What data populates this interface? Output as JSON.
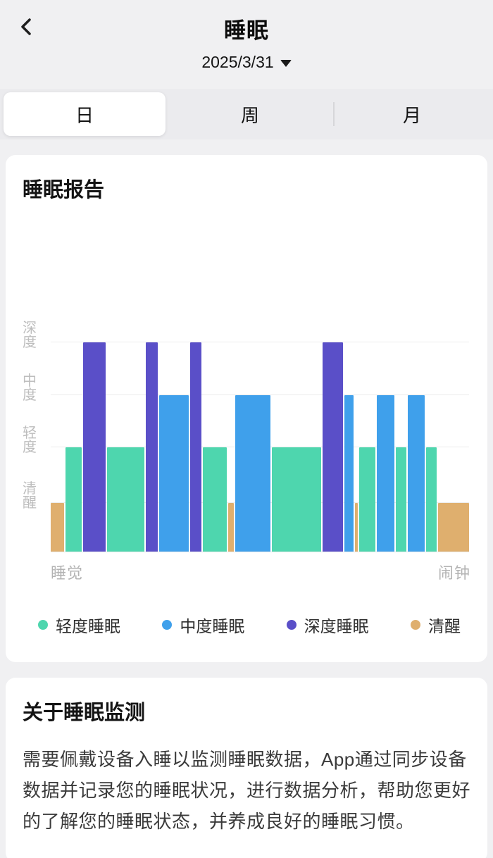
{
  "header": {
    "title": "睡眠",
    "date": "2025/3/31"
  },
  "tabs": {
    "day": "日",
    "week": "周",
    "month": "月"
  },
  "report_card": {
    "title": "睡眠报告"
  },
  "chart_data": {
    "type": "bar",
    "title": "睡眠报告",
    "description": "Sleep stage timeline for the night; bar height encodes stage depth level, bar width encodes duration share of the night",
    "y_axis": [
      {
        "label": "深度",
        "level": 4
      },
      {
        "label": "中度",
        "level": 3
      },
      {
        "label": "轻度",
        "level": 2
      },
      {
        "label": "清醒",
        "level": 1
      }
    ],
    "x_axis": {
      "left": "睡觉",
      "right": "闹钟"
    },
    "stages": {
      "light": {
        "label": "轻度睡眠",
        "color": "#4ed6ae",
        "level": 2
      },
      "medium": {
        "label": "中度睡眠",
        "color": "#3fa0eb",
        "level": 3
      },
      "deep": {
        "label": "深度睡眠",
        "color": "#5a4fc8",
        "level": 4
      },
      "awake": {
        "label": "清醒",
        "color": "#dfaf6e",
        "level": 1
      }
    },
    "legend_order": [
      "light",
      "medium",
      "deep",
      "awake"
    ],
    "segments": [
      {
        "stage": "awake",
        "width": 3.4
      },
      {
        "stage": "light",
        "width": 4.0
      },
      {
        "stage": "deep",
        "width": 5.6
      },
      {
        "stage": "light",
        "width": 9.3
      },
      {
        "stage": "deep",
        "width": 3.1
      },
      {
        "stage": "medium",
        "width": 7.3
      },
      {
        "stage": "deep",
        "width": 2.8
      },
      {
        "stage": "light",
        "width": 6.0
      },
      {
        "stage": "awake",
        "width": 1.4
      },
      {
        "stage": "medium",
        "width": 8.8
      },
      {
        "stage": "light",
        "width": 12.4
      },
      {
        "stage": "deep",
        "width": 5.0
      },
      {
        "stage": "medium",
        "width": 2.4
      },
      {
        "stage": "awake",
        "width": 0.6
      },
      {
        "stage": "light",
        "width": 4.0
      },
      {
        "stage": "medium",
        "width": 4.5
      },
      {
        "stage": "light",
        "width": 2.6
      },
      {
        "stage": "medium",
        "width": 4.3
      },
      {
        "stage": "light",
        "width": 2.6
      },
      {
        "stage": "awake",
        "width": 7.7
      }
    ]
  },
  "about_card": {
    "title": "关于睡眠监测",
    "body": "需要佩戴设备入睡以监测睡眠数据，App通过同步设备数据并记录您的睡眠状况，进行数据分析，帮助您更好的了解您的睡眠状态，并养成良好的睡眠习惯。"
  }
}
